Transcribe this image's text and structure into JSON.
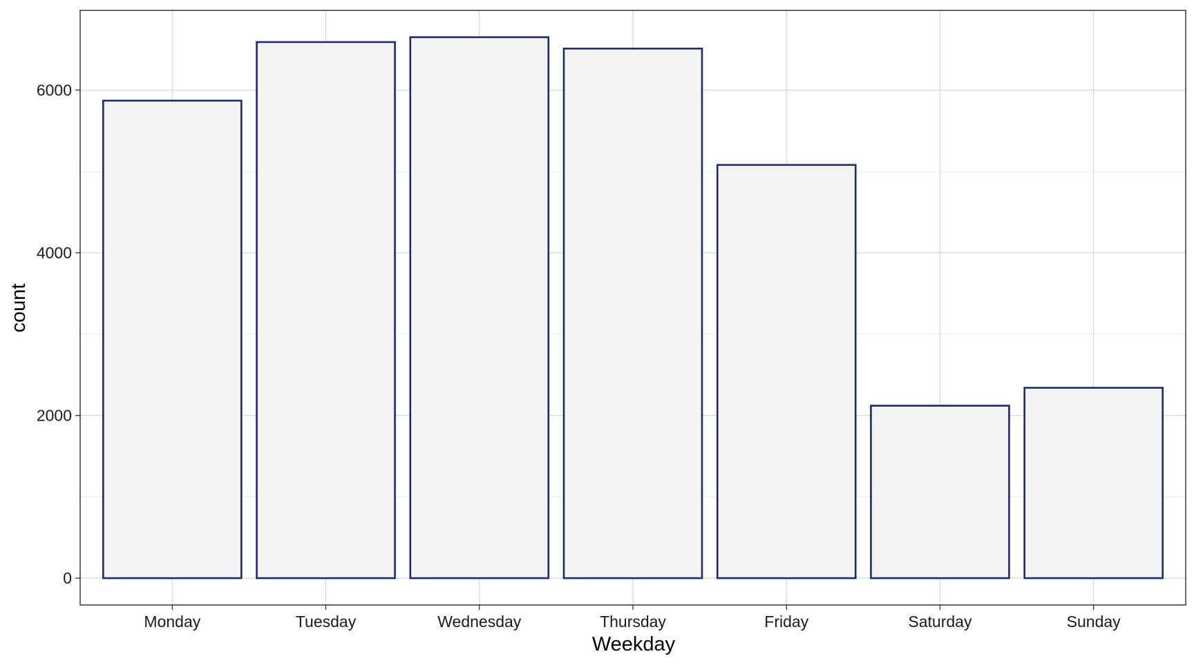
{
  "chart_data": {
    "type": "bar",
    "categories": [
      "Monday",
      "Tuesday",
      "Wednesday",
      "Thursday",
      "Friday",
      "Saturday",
      "Sunday"
    ],
    "values": [
      5870,
      6590,
      6650,
      6510,
      5080,
      2120,
      2340
    ],
    "xlabel": "Weekday",
    "ylabel": "count",
    "ylim": [
      -330,
      6980
    ],
    "yticks": [
      0,
      2000,
      4000,
      6000
    ],
    "ytick_labels": [
      "0",
      "2000",
      "4000",
      "6000"
    ],
    "grid": true,
    "colors": {
      "bar_fill": "#F2F2F2",
      "bar_stroke": "#1A2A6C",
      "grid_major": "#D4D4D4",
      "grid_minor": "#E8E8E8",
      "panel_border": "#333333",
      "tick_label": "#1A1A1A"
    }
  }
}
